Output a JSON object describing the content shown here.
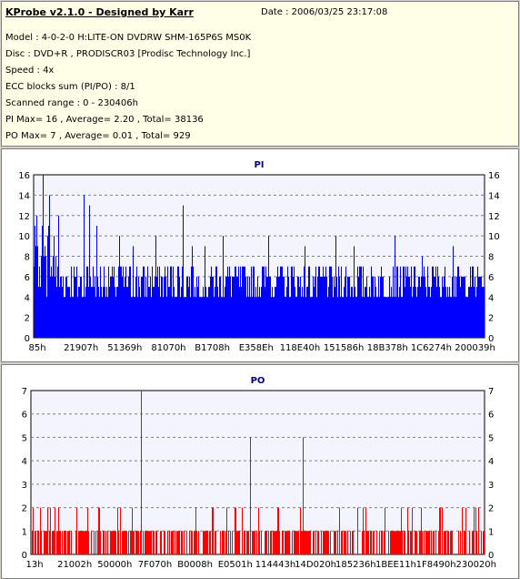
{
  "info": {
    "title": "KProbe v2.1.0 - Designed by Karr",
    "date": "Date : 2006/03/25 23:17:08",
    "lines": [
      "Model : 4-0-2-0 H:LITE-ON DVDRW SHM-165P6S MS0K",
      "Disc : DVD+R , PRODISCR03 [Prodisc Technology Inc.]",
      "Speed : 4x",
      "ECC blocks sum (PI/PO) : 8/1",
      "Scanned range : 0 - 230406h",
      "PI Max= 16 , Average= 2.20 , Total= 38136",
      "PO Max= 7 , Average= 0.01 , Total= 929"
    ]
  },
  "chart_data": [
    {
      "type": "bar",
      "title": "PI",
      "color": "#0000ff",
      "ylim": [
        0,
        16
      ],
      "yticks": [
        0,
        2,
        4,
        6,
        8,
        10,
        12,
        14,
        16
      ],
      "xrange_hex": [
        "0h",
        "230406h"
      ],
      "xtick_labels": [
        "85h",
        "21907h",
        "51369h",
        "81070h",
        "B1708h",
        "E358Eh",
        "118E40h",
        "151586h",
        "18B378h",
        "1C6274h",
        "200039h"
      ],
      "grid": true,
      "peaks": [
        {
          "pos": 0.02,
          "value": 16
        },
        {
          "pos": 0.035,
          "value": 14
        },
        {
          "pos": 0.11,
          "value": 14
        },
        {
          "pos": 0.123,
          "value": 13
        },
        {
          "pos": 0.33,
          "value": 13
        },
        {
          "pos": 0.055,
          "value": 12
        },
        {
          "pos": 0.14,
          "value": 11
        },
        {
          "pos": 0.19,
          "value": 10
        },
        {
          "pos": 0.22,
          "value": 9
        },
        {
          "pos": 0.27,
          "value": 10
        },
        {
          "pos": 0.35,
          "value": 9
        },
        {
          "pos": 0.38,
          "value": 9
        },
        {
          "pos": 0.42,
          "value": 10
        },
        {
          "pos": 0.52,
          "value": 10
        },
        {
          "pos": 0.6,
          "value": 9
        },
        {
          "pos": 0.67,
          "value": 10
        },
        {
          "pos": 0.71,
          "value": 9
        },
        {
          "pos": 0.8,
          "value": 10
        },
        {
          "pos": 0.86,
          "value": 8
        },
        {
          "pos": 0.93,
          "value": 9
        }
      ],
      "baseline_range": [
        4,
        7
      ]
    },
    {
      "type": "bar",
      "title": "PO",
      "color": "#ff0000",
      "ylim": [
        0,
        7
      ],
      "yticks": [
        0,
        1,
        2,
        3,
        4,
        5,
        6,
        7
      ],
      "xrange_hex": [
        "0h",
        "230406h"
      ],
      "xtick_labels": [
        "13h",
        "21002h",
        "50000h",
        "7F070h",
        "B0008h",
        "E0501h",
        "114443h",
        "14D020h",
        "185236h",
        "1BEE11h",
        "1F8490h",
        "230020h"
      ],
      "grid": true,
      "peaks": [
        {
          "pos": 0.242,
          "value": 7
        },
        {
          "pos": 0.482,
          "value": 5
        },
        {
          "pos": 0.6,
          "value": 5
        },
        {
          "pos": 0.985,
          "value": 2
        },
        {
          "pos": 0.005,
          "value": 2
        },
        {
          "pos": 0.02,
          "value": 2
        },
        {
          "pos": 0.06,
          "value": 2
        },
        {
          "pos": 0.1,
          "value": 2
        },
        {
          "pos": 0.15,
          "value": 2
        },
        {
          "pos": 0.19,
          "value": 2
        },
        {
          "pos": 0.4,
          "value": 2
        },
        {
          "pos": 0.45,
          "value": 2
        },
        {
          "pos": 0.68,
          "value": 2
        },
        {
          "pos": 0.72,
          "value": 2
        },
        {
          "pos": 0.78,
          "value": 2
        },
        {
          "pos": 0.84,
          "value": 2
        },
        {
          "pos": 0.9,
          "value": 2
        }
      ]
    }
  ]
}
